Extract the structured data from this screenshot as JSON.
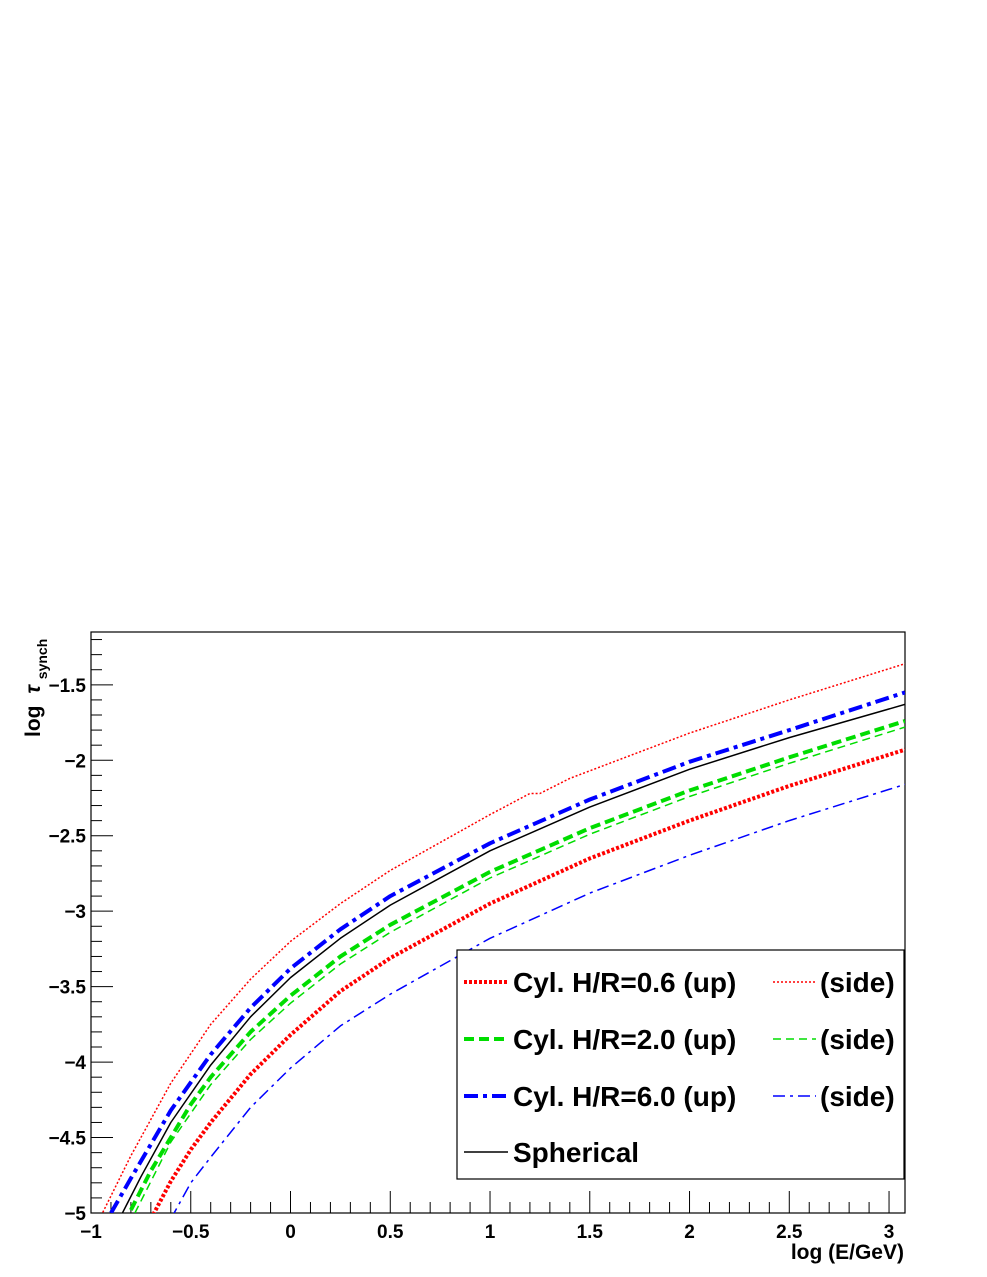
{
  "chart_data": {
    "type": "line",
    "xlabel": "log (E/GeV)",
    "ylabel_main": "log",
    "ylabel_symbol": "τ",
    "ylabel_subscript": "synch",
    "xlim": [
      -1,
      3.08
    ],
    "ylim": [
      -5,
      -1.15
    ],
    "x_ticks": [
      -1,
      -0.5,
      0,
      0.5,
      1,
      1.5,
      2,
      2.5,
      3
    ],
    "x_tick_labels": [
      "−1",
      "−0.5",
      "0",
      "0.5",
      "1",
      "1.5",
      "2",
      "2.5",
      "3"
    ],
    "y_ticks": [
      -5,
      -4.5,
      -4,
      -3.5,
      -3,
      -2.5,
      -2,
      -1.5
    ],
    "y_tick_labels": [
      "−5",
      "−4.5",
      "−4",
      "−3.5",
      "−3",
      "−2.5",
      "−2",
      "−1.5"
    ],
    "grid": false,
    "legend_position": "bottom-right",
    "series": [
      {
        "name": "Cyl. H/R=0.6 (up)",
        "color": "#ff0000",
        "style": "dotted",
        "width": 4,
        "x": [
          -0.7,
          -0.6,
          -0.5,
          -0.4,
          -0.2,
          0,
          0.25,
          0.5,
          1,
          1.5,
          2,
          2.5,
          3.08
        ],
        "y": [
          -5.04,
          -4.79,
          -4.58,
          -4.4,
          -4.08,
          -3.82,
          -3.53,
          -3.31,
          -2.95,
          -2.65,
          -2.4,
          -2.17,
          -1.93
        ]
      },
      {
        "name": "(side)",
        "color": "#ff0000",
        "style": "dotted",
        "width": 1.5,
        "x": [
          -0.95,
          -0.8,
          -0.6,
          -0.4,
          -0.2,
          0,
          0.25,
          0.5,
          1,
          1.2,
          1.25,
          1.4,
          2,
          2.5,
          3.08
        ],
        "y": [
          -5.02,
          -4.62,
          -4.14,
          -3.75,
          -3.45,
          -3.2,
          -2.95,
          -2.73,
          -2.36,
          -2.22,
          -2.22,
          -2.12,
          -1.82,
          -1.6,
          -1.36
        ]
      },
      {
        "name": "Cyl. H/R=2.0 (up)",
        "color": "#00dd00",
        "style": "dashed",
        "width": 4,
        "x": [
          -0.8,
          -0.7,
          -0.5,
          -0.4,
          -0.2,
          0,
          0.25,
          0.5,
          1,
          1.5,
          2,
          2.5,
          3.08
        ],
        "y": [
          -4.98,
          -4.72,
          -4.28,
          -4.1,
          -3.8,
          -3.56,
          -3.3,
          -3.09,
          -2.74,
          -2.45,
          -2.2,
          -1.98,
          -1.74
        ]
      },
      {
        "name": "(side)",
        "color": "#00dd00",
        "style": "dashed",
        "width": 1.5,
        "x": [
          -0.78,
          -0.6,
          -0.4,
          -0.2,
          0,
          0.25,
          0.5,
          1,
          1.5,
          2,
          2.5,
          3.08
        ],
        "y": [
          -5.0,
          -4.53,
          -4.15,
          -3.85,
          -3.61,
          -3.35,
          -3.14,
          -2.78,
          -2.49,
          -2.24,
          -2.02,
          -1.78
        ]
      },
      {
        "name": "Cyl. H/R=6.0 (up)",
        "color": "#0000ff",
        "style": "dashdot",
        "width": 4,
        "x": [
          -0.9,
          -0.8,
          -0.6,
          -0.4,
          -0.2,
          0,
          0.25,
          0.5,
          1,
          1.5,
          2,
          2.5,
          3.08
        ],
        "y": [
          -5.0,
          -4.77,
          -4.32,
          -3.95,
          -3.64,
          -3.38,
          -3.12,
          -2.9,
          -2.55,
          -2.26,
          -2.01,
          -1.8,
          -1.55
        ]
      },
      {
        "name": "(side)",
        "color": "#0000ff",
        "style": "dashdot",
        "width": 1.5,
        "x": [
          -0.6,
          -0.5,
          -0.4,
          -0.2,
          0,
          0.25,
          0.5,
          1,
          1.5,
          2,
          2.5,
          3.08
        ],
        "y": [
          -5.04,
          -4.8,
          -4.63,
          -4.3,
          -4.04,
          -3.76,
          -3.55,
          -3.18,
          -2.88,
          -2.63,
          -2.4,
          -2.16
        ]
      },
      {
        "name": "Spherical",
        "color": "#000000",
        "style": "solid",
        "width": 1.5,
        "x": [
          -0.85,
          -0.75,
          -0.6,
          -0.4,
          -0.2,
          0,
          0.25,
          0.5,
          1,
          1.5,
          2,
          2.5,
          3.08
        ],
        "y": [
          -5.02,
          -4.76,
          -4.4,
          -4.02,
          -3.7,
          -3.44,
          -3.18,
          -2.96,
          -2.6,
          -2.31,
          -2.06,
          -1.85,
          -1.63
        ]
      }
    ],
    "legend_rows": [
      {
        "primary": "Cyl. H/R=0.6 (up)",
        "secondary": "(side)",
        "color": "#ff0000",
        "style": "dotted"
      },
      {
        "primary": "Cyl. H/R=2.0 (up)",
        "secondary": "(side)",
        "color": "#00dd00",
        "style": "dashed"
      },
      {
        "primary": "Cyl. H/R=6.0 (up)",
        "secondary": "(side)",
        "color": "#0000ff",
        "style": "dashdot"
      },
      {
        "primary": "Spherical",
        "secondary": "",
        "color": "#000000",
        "style": "solid"
      }
    ]
  }
}
